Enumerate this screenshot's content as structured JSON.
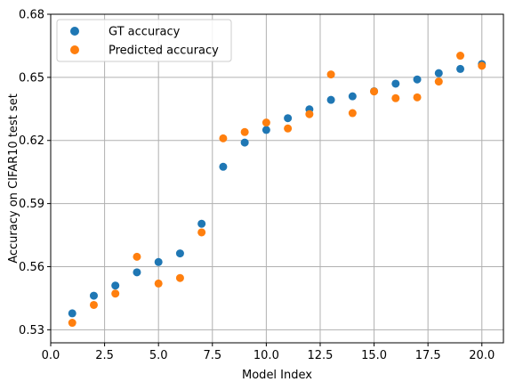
{
  "chart_data": {
    "type": "scatter",
    "xlabel": "Model Index",
    "ylabel": "Accuracy on CIFAR10 test set",
    "xlim": [
      0,
      21
    ],
    "ylim": [
      0.5238,
      0.68
    ],
    "xticks": [
      "0.0",
      "2.5",
      "5.0",
      "7.5",
      "10.0",
      "12.5",
      "15.0",
      "17.5",
      "20.0"
    ],
    "xtick_values": [
      0,
      2.5,
      5,
      7.5,
      10,
      12.5,
      15,
      17.5,
      20
    ],
    "yticks": [
      "0.53",
      "0.56",
      "0.59",
      "0.62",
      "0.65",
      "0.68"
    ],
    "ytick_values": [
      0.53,
      0.56,
      0.59,
      0.62,
      0.65,
      0.68
    ],
    "grid": true,
    "legend_position": "top-left",
    "series": [
      {
        "name": "GT accuracy",
        "color": "#1f77b4",
        "x": [
          1,
          2,
          3,
          4,
          5,
          6,
          7,
          8,
          9,
          10,
          11,
          12,
          13,
          14,
          15,
          16,
          17,
          18,
          19,
          20
        ],
        "y": [
          0.5378,
          0.5462,
          0.551,
          0.5573,
          0.5622,
          0.5663,
          0.5804,
          0.6075,
          0.619,
          0.625,
          0.6306,
          0.6348,
          0.6393,
          0.641,
          0.6434,
          0.647,
          0.649,
          0.652,
          0.654,
          0.6563
        ]
      },
      {
        "name": "Predicted accuracy",
        "color": "#ff7f0e",
        "x": [
          1,
          2,
          3,
          4,
          5,
          6,
          7,
          8,
          9,
          10,
          11,
          12,
          13,
          14,
          15,
          16,
          17,
          18,
          19,
          20
        ],
        "y": [
          0.5333,
          0.5418,
          0.5472,
          0.5647,
          0.552,
          0.5546,
          0.5763,
          0.621,
          0.624,
          0.6285,
          0.6257,
          0.6325,
          0.6514,
          0.633,
          0.6433,
          0.6401,
          0.6405,
          0.648,
          0.6603,
          0.6555
        ]
      }
    ]
  }
}
